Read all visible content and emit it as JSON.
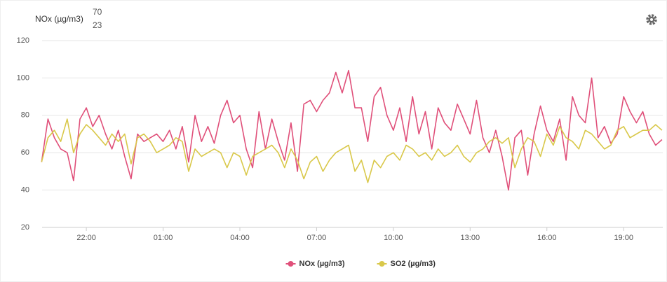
{
  "chart_data": {
    "type": "line",
    "readout_label": "NOx (µg/m3)",
    "readouts": [
      70,
      23
    ],
    "readout_colors": [
      "#e0303a",
      "#cf6fc9"
    ],
    "xlim": [
      20.27,
      44.53
    ],
    "xticks": [
      {
        "value": 22,
        "label": "22:00"
      },
      {
        "value": 25,
        "label": "01:00"
      },
      {
        "value": 28,
        "label": "04:00"
      },
      {
        "value": 31,
        "label": "07:00"
      },
      {
        "value": 34,
        "label": "10:00"
      },
      {
        "value": 37,
        "label": "13:00"
      },
      {
        "value": 40,
        "label": "16:00"
      },
      {
        "value": 43,
        "label": "19:00"
      }
    ],
    "ylim": [
      20,
      120
    ],
    "yticks": [
      20,
      40,
      60,
      80,
      100,
      120
    ],
    "grid": true,
    "legend": "bottom",
    "x": [
      20.25,
      20.5,
      20.75,
      21,
      21.25,
      21.5,
      21.75,
      22,
      22.25,
      22.5,
      22.75,
      23,
      23.25,
      23.5,
      23.75,
      24,
      24.25,
      24.5,
      24.75,
      25,
      25.25,
      25.5,
      25.75,
      26,
      26.25,
      26.5,
      26.75,
      27,
      27.25,
      27.5,
      27.75,
      28,
      28.25,
      28.5,
      28.75,
      29,
      29.25,
      29.5,
      29.75,
      30,
      30.25,
      30.5,
      30.75,
      31,
      31.25,
      31.5,
      31.75,
      32,
      32.25,
      32.5,
      32.75,
      33,
      33.25,
      33.5,
      33.75,
      34,
      34.25,
      34.5,
      34.75,
      35,
      35.25,
      35.5,
      35.75,
      36,
      36.25,
      36.5,
      36.75,
      37,
      37.25,
      37.5,
      37.75,
      38,
      38.25,
      38.5,
      38.75,
      39,
      39.25,
      39.5,
      39.75,
      40,
      40.25,
      40.5,
      40.75,
      41,
      41.25,
      41.5,
      41.75,
      42,
      42.25,
      42.5,
      42.75,
      43,
      43.25,
      43.5,
      43.75,
      44,
      44.25,
      44.5
    ],
    "series": [
      {
        "name": "NOx (µg/m3)",
        "color": "#e0507a",
        "values": [
          55,
          78,
          68,
          62,
          60,
          45,
          78,
          84,
          74,
          80,
          70,
          62,
          72,
          58,
          46,
          70,
          66,
          68,
          70,
          66,
          72,
          62,
          74,
          55,
          80,
          66,
          74,
          65,
          80,
          88,
          76,
          80,
          62,
          52,
          82,
          62,
          78,
          66,
          56,
          76,
          50,
          86,
          88,
          82,
          88,
          92,
          103,
          92,
          104,
          84,
          84,
          66,
          90,
          95,
          80,
          72,
          84,
          66,
          90,
          70,
          82,
          62,
          84,
          76,
          72,
          86,
          78,
          70,
          88,
          68,
          60,
          72,
          58,
          40,
          68,
          72,
          48,
          70,
          85,
          72,
          66,
          78,
          56,
          90,
          80,
          76,
          100,
          68,
          74,
          65,
          70,
          90,
          82,
          76,
          82,
          70,
          64,
          67
        ]
      },
      {
        "name": "SO2 (µg/m3)",
        "color": "#d9c84a",
        "values": [
          55,
          68,
          72,
          66,
          78,
          60,
          70,
          75,
          72,
          68,
          64,
          70,
          66,
          70,
          54,
          68,
          70,
          66,
          60,
          62,
          64,
          68,
          66,
          50,
          62,
          58,
          60,
          62,
          60,
          52,
          60,
          58,
          48,
          58,
          60,
          62,
          64,
          60,
          52,
          62,
          56,
          46,
          55,
          58,
          50,
          56,
          60,
          62,
          64,
          50,
          56,
          44,
          56,
          52,
          58,
          60,
          56,
          64,
          62,
          58,
          60,
          56,
          62,
          58,
          60,
          64,
          58,
          55,
          60,
          62,
          66,
          68,
          65,
          68,
          52,
          62,
          68,
          66,
          58,
          70,
          64,
          74,
          68,
          66,
          62,
          72,
          70,
          66,
          62,
          64,
          72,
          74,
          68,
          70,
          72,
          72,
          75,
          72
        ]
      }
    ]
  }
}
